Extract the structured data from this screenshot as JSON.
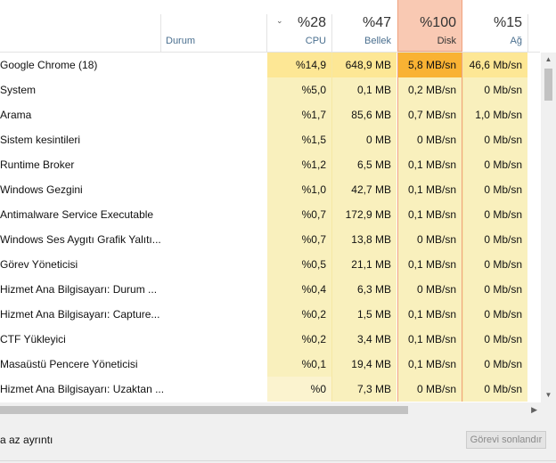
{
  "header": {
    "status_label": "Durum",
    "columns": [
      {
        "pct": "%28",
        "label": "CPU"
      },
      {
        "pct": "%47",
        "label": "Bellek"
      },
      {
        "pct": "%100",
        "label": "Disk"
      },
      {
        "pct": "%15",
        "label": "Ağ"
      }
    ],
    "sort_icon": "chevron-down-icon"
  },
  "processes": [
    {
      "name": "Google Chrome (18)",
      "cpu": "%14,9",
      "mem": "648,9 MB",
      "disk": "5,8 MB/sn",
      "net": "46,6 Mb/sn"
    },
    {
      "name": "System",
      "cpu": "%5,0",
      "mem": "0,1 MB",
      "disk": "0,2 MB/sn",
      "net": "0 Mb/sn"
    },
    {
      "name": "Arama",
      "cpu": "%1,7",
      "mem": "85,6 MB",
      "disk": "0,7 MB/sn",
      "net": "1,0 Mb/sn"
    },
    {
      "name": "Sistem kesintileri",
      "cpu": "%1,5",
      "mem": "0 MB",
      "disk": "0 MB/sn",
      "net": "0 Mb/sn"
    },
    {
      "name": "Runtime Broker",
      "cpu": "%1,2",
      "mem": "6,5 MB",
      "disk": "0,1 MB/sn",
      "net": "0 Mb/sn"
    },
    {
      "name": "Windows Gezgini",
      "cpu": "%1,0",
      "mem": "42,7 MB",
      "disk": "0,1 MB/sn",
      "net": "0 Mb/sn"
    },
    {
      "name": "Antimalware Service Executable",
      "cpu": "%0,7",
      "mem": "172,9 MB",
      "disk": "0,1 MB/sn",
      "net": "0 Mb/sn"
    },
    {
      "name": "Windows Ses Aygıtı Grafik Yalıtı...",
      "cpu": "%0,7",
      "mem": "13,8 MB",
      "disk": "0 MB/sn",
      "net": "0 Mb/sn"
    },
    {
      "name": "Görev Yöneticisi",
      "cpu": "%0,5",
      "mem": "21,1 MB",
      "disk": "0,1 MB/sn",
      "net": "0 Mb/sn"
    },
    {
      "name": "Hizmet Ana Bilgisayarı: Durum ...",
      "cpu": "%0,4",
      "mem": "6,3 MB",
      "disk": "0 MB/sn",
      "net": "0 Mb/sn"
    },
    {
      "name": "Hizmet Ana Bilgisayarı: Capture...",
      "cpu": "%0,2",
      "mem": "1,5 MB",
      "disk": "0,1 MB/sn",
      "net": "0 Mb/sn"
    },
    {
      "name": "CTF Yükleyici",
      "cpu": "%0,2",
      "mem": "3,4 MB",
      "disk": "0,1 MB/sn",
      "net": "0 Mb/sn"
    },
    {
      "name": "Masaüstü Pencere Yöneticisi",
      "cpu": "%0,1",
      "mem": "19,4 MB",
      "disk": "0,1 MB/sn",
      "net": "0 Mb/sn"
    },
    {
      "name": "Hizmet Ana Bilgisayarı: Uzaktan ...",
      "cpu": "%0",
      "mem": "7,3 MB",
      "disk": "0 MB/sn",
      "net": "0 Mb/sn"
    }
  ],
  "footer": {
    "fewer_details": "a az ayrıntı",
    "end_task": "Görevi sonlandır"
  },
  "colors": {
    "cell_bg": "#f9f0bd",
    "hot_cell_bg": "#fde795",
    "disk_hot": "#f9b233",
    "disk_header": "#f9c9b3"
  }
}
